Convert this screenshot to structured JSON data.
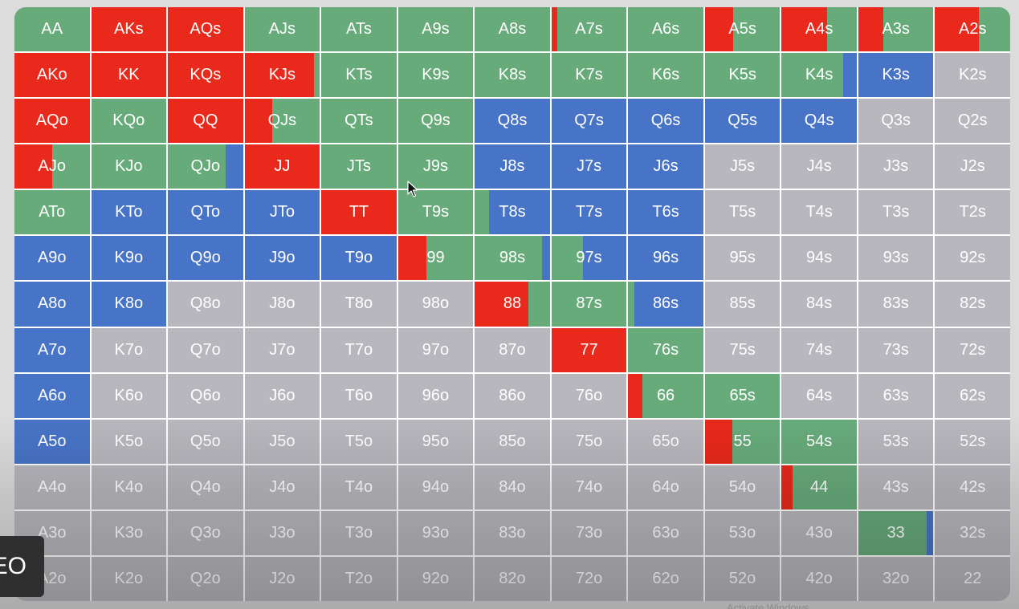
{
  "colors": {
    "raise": "#e8291b",
    "call": "#68ab7b",
    "fold": "#4874c7",
    "none": "#b7b7bd"
  },
  "grid": {
    "rows": [
      [
        "AA",
        "AKs",
        "AQs",
        "AJs",
        "ATs",
        "A9s",
        "A8s",
        "A7s",
        "A6s",
        "A5s",
        "A4s",
        "A3s",
        "A2s"
      ],
      [
        "AKo",
        "KK",
        "KQs",
        "KJs",
        "KTs",
        "K9s",
        "K8s",
        "K7s",
        "K6s",
        "K5s",
        "K4s",
        "K3s",
        "K2s"
      ],
      [
        "AQo",
        "KQo",
        "QQ",
        "QJs",
        "QTs",
        "Q9s",
        "Q8s",
        "Q7s",
        "Q6s",
        "Q5s",
        "Q4s",
        "Q3s",
        "Q2s"
      ],
      [
        "AJo",
        "KJo",
        "QJo",
        "JJ",
        "JTs",
        "J9s",
        "J8s",
        "J7s",
        "J6s",
        "J5s",
        "J4s",
        "J3s",
        "J2s"
      ],
      [
        "ATo",
        "KTo",
        "QTo",
        "JTo",
        "TT",
        "T9s",
        "T8s",
        "T7s",
        "T6s",
        "T5s",
        "T4s",
        "T3s",
        "T2s"
      ],
      [
        "A9o",
        "K9o",
        "Q9o",
        "J9o",
        "T9o",
        "99",
        "98s",
        "97s",
        "96s",
        "95s",
        "94s",
        "93s",
        "92s"
      ],
      [
        "A8o",
        "K8o",
        "Q8o",
        "J8o",
        "T8o",
        "98o",
        "88",
        "87s",
        "86s",
        "85s",
        "84s",
        "83s",
        "82s"
      ],
      [
        "A7o",
        "K7o",
        "Q7o",
        "J7o",
        "T7o",
        "97o",
        "87o",
        "77",
        "76s",
        "75s",
        "74s",
        "73s",
        "72s"
      ],
      [
        "A6o",
        "K6o",
        "Q6o",
        "J6o",
        "T6o",
        "96o",
        "86o",
        "76o",
        "66",
        "65s",
        "64s",
        "63s",
        "62s"
      ],
      [
        "A5o",
        "K5o",
        "Q5o",
        "J5o",
        "T5o",
        "95o",
        "85o",
        "75o",
        "65o",
        "55",
        "54s",
        "53s",
        "52s"
      ],
      [
        "A4o",
        "K4o",
        "Q4o",
        "J4o",
        "T4o",
        "94o",
        "84o",
        "74o",
        "64o",
        "54o",
        "44",
        "43s",
        "42s"
      ],
      [
        "A3o",
        "K3o",
        "Q3o",
        "J3o",
        "T3o",
        "93o",
        "83o",
        "73o",
        "63o",
        "53o",
        "43o",
        "33",
        "32s"
      ],
      [
        "A2o",
        "K2o",
        "Q2o",
        "J2o",
        "T2o",
        "92o",
        "82o",
        "72o",
        "62o",
        "52o",
        "42o",
        "32o",
        "22"
      ]
    ],
    "frequencies": [
      [
        [
          0,
          1,
          0
        ],
        [
          1,
          0,
          0
        ],
        [
          1,
          0,
          0
        ],
        [
          0,
          1,
          0
        ],
        [
          0,
          1,
          0
        ],
        [
          0,
          1,
          0
        ],
        [
          0,
          1,
          0
        ],
        [
          0.08,
          0.92,
          0
        ],
        [
          0,
          1,
          0
        ],
        [
          0.38,
          0.62,
          0
        ],
        [
          0.6,
          0.4,
          0
        ],
        [
          0.33,
          0.67,
          0
        ],
        [
          0.58,
          0.42,
          0
        ]
      ],
      [
        [
          1,
          0,
          0
        ],
        [
          1,
          0,
          0
        ],
        [
          1,
          0,
          0
        ],
        [
          0.92,
          0.08,
          0
        ],
        [
          0,
          1,
          0
        ],
        [
          0,
          1,
          0
        ],
        [
          0,
          1,
          0
        ],
        [
          0,
          1,
          0
        ],
        [
          0,
          1,
          0
        ],
        [
          0,
          1,
          0
        ],
        [
          0,
          0.82,
          0.18
        ],
        [
          0,
          0,
          1
        ],
        [
          0,
          0,
          0
        ]
      ],
      [
        [
          1,
          0,
          0
        ],
        [
          0,
          1,
          0
        ],
        [
          1,
          0,
          0
        ],
        [
          0.37,
          0.63,
          0
        ],
        [
          0,
          1,
          0
        ],
        [
          0,
          1,
          0
        ],
        [
          0,
          0,
          1
        ],
        [
          0,
          0,
          1
        ],
        [
          0,
          0,
          1
        ],
        [
          0,
          0,
          1
        ],
        [
          0,
          0,
          1
        ],
        [
          0,
          0,
          0
        ],
        [
          0,
          0,
          0
        ]
      ],
      [
        [
          0.5,
          0.5,
          0
        ],
        [
          0,
          1,
          0
        ],
        [
          0,
          0.77,
          0.23
        ],
        [
          1,
          0,
          0
        ],
        [
          0,
          1,
          0
        ],
        [
          0,
          1,
          0
        ],
        [
          0,
          0,
          1
        ],
        [
          0,
          0,
          1
        ],
        [
          0,
          0,
          1
        ],
        [
          0,
          0,
          0
        ],
        [
          0,
          0,
          0
        ],
        [
          0,
          0,
          0
        ],
        [
          0,
          0,
          0
        ]
      ],
      [
        [
          0,
          1,
          0
        ],
        [
          0,
          0,
          1
        ],
        [
          0,
          0,
          1
        ],
        [
          0,
          0,
          1
        ],
        [
          1,
          0,
          0
        ],
        [
          0,
          1,
          0
        ],
        [
          0,
          0.19,
          0.81
        ],
        [
          0,
          0,
          1
        ],
        [
          0,
          0,
          1
        ],
        [
          0,
          0,
          0
        ],
        [
          0,
          0,
          0
        ],
        [
          0,
          0,
          0
        ],
        [
          0,
          0,
          0
        ]
      ],
      [
        [
          0,
          0,
          1
        ],
        [
          0,
          0,
          1
        ],
        [
          0,
          0,
          1
        ],
        [
          0,
          0,
          1
        ],
        [
          0,
          0,
          1
        ],
        [
          0.38,
          0.62,
          0
        ],
        [
          0,
          0.9,
          0.1
        ],
        [
          0,
          0.42,
          0.58
        ],
        [
          0,
          0,
          1
        ],
        [
          0,
          0,
          0
        ],
        [
          0,
          0,
          0
        ],
        [
          0,
          0,
          0
        ],
        [
          0,
          0,
          0
        ]
      ],
      [
        [
          0,
          0,
          1
        ],
        [
          0,
          0,
          1
        ],
        [
          0,
          0,
          0
        ],
        [
          0,
          0,
          0
        ],
        [
          0,
          0,
          0
        ],
        [
          0,
          0,
          0
        ],
        [
          0.71,
          0.29,
          0
        ],
        [
          0,
          1,
          0
        ],
        [
          0,
          0.08,
          0.92
        ],
        [
          0,
          0,
          0
        ],
        [
          0,
          0,
          0
        ],
        [
          0,
          0,
          0
        ],
        [
          0,
          0,
          0
        ]
      ],
      [
        [
          0,
          0,
          1
        ],
        [
          0,
          0,
          0
        ],
        [
          0,
          0,
          0
        ],
        [
          0,
          0,
          0
        ],
        [
          0,
          0,
          0
        ],
        [
          0,
          0,
          0
        ],
        [
          0,
          0,
          0
        ],
        [
          1,
          0,
          0
        ],
        [
          0,
          1,
          0
        ],
        [
          0,
          0,
          0
        ],
        [
          0,
          0,
          0
        ],
        [
          0,
          0,
          0
        ],
        [
          0,
          0,
          0
        ]
      ],
      [
        [
          0,
          0,
          1
        ],
        [
          0,
          0,
          0
        ],
        [
          0,
          0,
          0
        ],
        [
          0,
          0,
          0
        ],
        [
          0,
          0,
          0
        ],
        [
          0,
          0,
          0
        ],
        [
          0,
          0,
          0
        ],
        [
          0,
          0,
          0
        ],
        [
          0.19,
          0.81,
          0
        ],
        [
          0,
          1,
          0
        ],
        [
          0,
          0,
          0
        ],
        [
          0,
          0,
          0
        ],
        [
          0,
          0,
          0
        ]
      ],
      [
        [
          0,
          0,
          1
        ],
        [
          0,
          0,
          0
        ],
        [
          0,
          0,
          0
        ],
        [
          0,
          0,
          0
        ],
        [
          0,
          0,
          0
        ],
        [
          0,
          0,
          0
        ],
        [
          0,
          0,
          0
        ],
        [
          0,
          0,
          0
        ],
        [
          0,
          0,
          0
        ],
        [
          0.37,
          0.63,
          0
        ],
        [
          0,
          1,
          0
        ],
        [
          0,
          0,
          0
        ],
        [
          0,
          0,
          0
        ]
      ],
      [
        [
          0,
          0,
          0
        ],
        [
          0,
          0,
          0
        ],
        [
          0,
          0,
          0
        ],
        [
          0,
          0,
          0
        ],
        [
          0,
          0,
          0
        ],
        [
          0,
          0,
          0
        ],
        [
          0,
          0,
          0
        ],
        [
          0,
          0,
          0
        ],
        [
          0,
          0,
          0
        ],
        [
          0,
          0,
          0
        ],
        [
          0.15,
          0.85,
          0
        ],
        [
          0,
          0,
          0
        ],
        [
          0,
          0,
          0
        ]
      ],
      [
        [
          0,
          0,
          0
        ],
        [
          0,
          0,
          0
        ],
        [
          0,
          0,
          0
        ],
        [
          0,
          0,
          0
        ],
        [
          0,
          0,
          0
        ],
        [
          0,
          0,
          0
        ],
        [
          0,
          0,
          0
        ],
        [
          0,
          0,
          0
        ],
        [
          0,
          0,
          0
        ],
        [
          0,
          0,
          0
        ],
        [
          0,
          0,
          0
        ],
        [
          0,
          0.91,
          0.09
        ],
        [
          0,
          0,
          0
        ]
      ],
      [
        [
          0,
          0,
          0
        ],
        [
          0,
          0,
          0
        ],
        [
          0,
          0,
          0
        ],
        [
          0,
          0,
          0
        ],
        [
          0,
          0,
          0
        ],
        [
          0,
          0,
          0
        ],
        [
          0,
          0,
          0
        ],
        [
          0,
          0,
          0
        ],
        [
          0,
          0,
          0
        ],
        [
          0,
          0,
          0
        ],
        [
          0,
          0,
          0
        ],
        [
          0,
          0,
          0
        ],
        [
          0,
          0,
          0
        ]
      ]
    ]
  },
  "overlay": {
    "badge_text": "EO"
  },
  "footnote": "Activate Windows"
}
